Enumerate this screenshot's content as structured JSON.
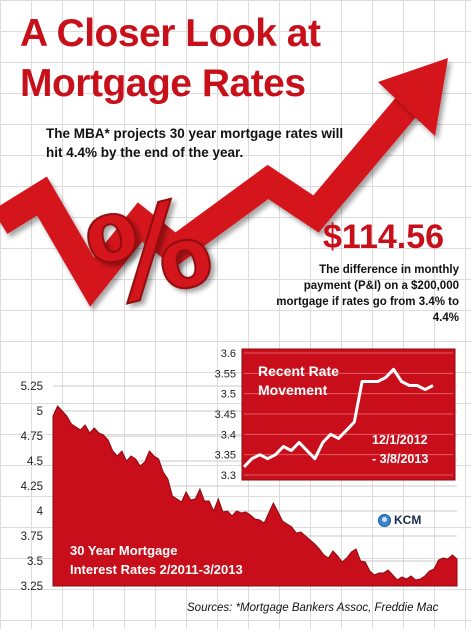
{
  "header": {
    "title_line1": "A Closer Look at",
    "title_line2": "Mortgage Rates",
    "subtitle": "The MBA* projects 30 year mortgage rates will hit 4.4% by the end of the year."
  },
  "highlight": {
    "amount": "$114.56",
    "description": "The difference in monthly payment (P&I) on a $200,000 mortgage if rates go from 3.4% to 4.4%"
  },
  "decor": {
    "percent_symbol": "%"
  },
  "colors": {
    "accent_red": "#c8101b",
    "dark_red": "#8e0a10",
    "arrow_red": "#d4121c"
  },
  "branding": {
    "logo_text": "KCM",
    "logo_icon": "globe-icon"
  },
  "sources": "Sources: *Mortgage Bankers Assoc, Freddie Mac",
  "chart_data": [
    {
      "type": "area",
      "label_line1": "30 Year Mortgage",
      "label_line2": "Interest Rates  2/2011-3/2013",
      "ylim": [
        3.25,
        5.25
      ],
      "yticks": [
        "5.25",
        "5",
        "4.75",
        "4.5",
        "4.25",
        "4",
        "3.75",
        "3.5",
        "3.25"
      ],
      "grid": true,
      "values": [
        4.95,
        5.05,
        5.0,
        4.95,
        4.87,
        4.84,
        4.81,
        4.86,
        4.78,
        4.83,
        4.78,
        4.76,
        4.71,
        4.6,
        4.55,
        4.6,
        4.5,
        4.55,
        4.52,
        4.45,
        4.49,
        4.6,
        4.55,
        4.52,
        4.39,
        4.32,
        4.15,
        4.12,
        4.09,
        4.19,
        4.11,
        4.12,
        4.22,
        4.1,
        4.1,
        4.0,
        4.12,
        3.99,
        4.0,
        3.95,
        4.0,
        3.98,
        3.99,
        3.96,
        3.92,
        3.91,
        3.88,
        3.98,
        4.08,
        3.99,
        3.9,
        3.87,
        3.84,
        3.78,
        3.79,
        3.75,
        3.71,
        3.67,
        3.62,
        3.56,
        3.53,
        3.6,
        3.55,
        3.49,
        3.53,
        3.59,
        3.62,
        3.5,
        3.49,
        3.4,
        3.36,
        3.38,
        3.38,
        3.41,
        3.36,
        3.31,
        3.34,
        3.32,
        3.35,
        3.31,
        3.32,
        3.35,
        3.4,
        3.42,
        3.51,
        3.53,
        3.52,
        3.56,
        3.52
      ]
    },
    {
      "type": "line",
      "title": "Recent Rate Movement",
      "date_line1": "12/1/2012",
      "date_line2": "- 3/8/2013",
      "ylim": [
        3.3,
        3.6
      ],
      "yticks": [
        "3.6",
        "3.55",
        "3.5",
        "3.45",
        "3.4",
        "3.35",
        "3.3"
      ],
      "grid": true,
      "values": [
        3.32,
        3.34,
        3.35,
        3.34,
        3.35,
        3.37,
        3.36,
        3.38,
        3.36,
        3.34,
        3.38,
        3.4,
        3.39,
        3.41,
        3.43,
        3.53,
        3.53,
        3.53,
        3.54,
        3.56,
        3.53,
        3.52,
        3.52,
        3.51,
        3.52
      ]
    }
  ]
}
